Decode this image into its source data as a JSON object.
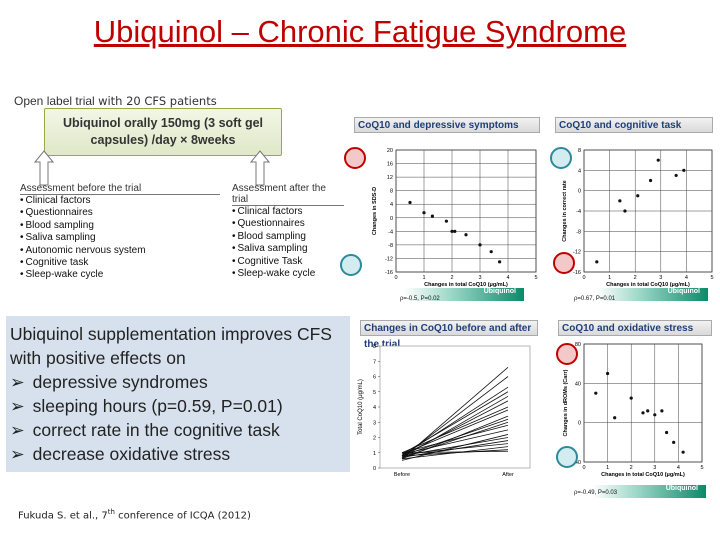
{
  "title": "Ubiquinol – Chronic Fatigue Syndrome",
  "trial": {
    "label": "Open label trial",
    "label_suffix": "with 20 CFS patients",
    "dose": "Ubiquinol orally 150mg (3 soft gel capsules) /day × 8weeks"
  },
  "assessment_before": {
    "heading": "Assessment before the trial",
    "items": [
      "Clinical factors",
      "Questionnaires",
      "Blood sampling",
      "Saliva sampling",
      "Autonomic nervous system",
      "Cognitive task",
      "Sleep-wake cycle"
    ]
  },
  "assessment_after": {
    "heading": "Assessment after the trial",
    "items": [
      "Clinical factors",
      "Questionnaires",
      "Blood sampling",
      "Saliva sampling",
      "Cognitive Task",
      "Sleep-wake cycle"
    ]
  },
  "panels": {
    "depressive": {
      "title": "CoQ10 and depressive symptoms",
      "stat": "ρ=-0.5, P=0.02",
      "strip": "Ubiquinol"
    },
    "cognitive": {
      "title": "CoQ10 and cognitive task",
      "stat": "ρ=0.67, P=0.01",
      "strip": "Ubiquinol"
    },
    "before_after": {
      "title": "Changes in CoQ10 before and after the trial",
      "xlabels": [
        "Before",
        "After"
      ]
    },
    "oxidative": {
      "title": "CoQ10 and oxidative stress",
      "stat": "ρ=-0.49, P=0.03",
      "strip": "Ubiquinol"
    }
  },
  "summary": {
    "intro": "Ubiquinol supplementation improves CFS with positive effects on",
    "bullets": [
      "depressive syndromes",
      "sleeping hours (p=0.59, P=0.01)",
      "correct rate in the cognitive task",
      "decrease oxidative stress"
    ]
  },
  "citation": {
    "text": "Fukuda S. et al., 7",
    "sup": "th",
    "rest": " conference of ICQA (2012)"
  },
  "chart_data": [
    {
      "type": "scatter",
      "title": "CoQ10 and depressive symptoms",
      "xlabel": "Changes in total CoQ10 (μg/mL)",
      "ylabel": "Changes in SDS-D",
      "xlim": [
        0,
        5
      ],
      "ylim": [
        -16,
        20
      ],
      "xticks": [
        0,
        1,
        2,
        3,
        4,
        5
      ],
      "yticks": [
        20,
        16,
        12,
        8,
        4,
        0,
        -4,
        -8,
        -12,
        -16
      ],
      "points": [
        [
          0.5,
          4.5
        ],
        [
          1.0,
          1.5
        ],
        [
          1.3,
          0.5
        ],
        [
          1.8,
          -1
        ],
        [
          2.0,
          -4
        ],
        [
          2.1,
          -4
        ],
        [
          2.5,
          -5
        ],
        [
          3.0,
          -8
        ],
        [
          3.4,
          -10
        ],
        [
          3.7,
          -13
        ]
      ]
    },
    {
      "type": "scatter",
      "title": "CoQ10 and cognitive task",
      "xlabel": "Changes in total CoQ10 (μg/mL)",
      "ylabel": "Changes in correct rate",
      "xlim": [
        0,
        5
      ],
      "ylim": [
        -16,
        8
      ],
      "xticks": [
        0,
        1,
        2,
        3,
        4,
        5
      ],
      "yticks": [
        8,
        4,
        0,
        -4,
        -8,
        -12,
        -16
      ],
      "points": [
        [
          0.5,
          -14
        ],
        [
          1.4,
          -2
        ],
        [
          1.6,
          -4
        ],
        [
          2.1,
          -1
        ],
        [
          2.6,
          2
        ],
        [
          2.9,
          6
        ],
        [
          3.6,
          3
        ],
        [
          3.9,
          4
        ]
      ]
    },
    {
      "type": "line",
      "title": "Changes in CoQ10 before and after the trial",
      "ylabel": "Total CoQ10 (μg/mL)",
      "categories": [
        "Before",
        "After"
      ],
      "ylim": [
        0,
        8
      ],
      "yticks": [
        8,
        7,
        6,
        5,
        4,
        3,
        2,
        1,
        0
      ],
      "series_values": [
        [
          0.6,
          6.6
        ],
        [
          0.7,
          6.0
        ],
        [
          0.8,
          5.3
        ],
        [
          0.9,
          5.0
        ],
        [
          0.7,
          4.7
        ],
        [
          0.8,
          4.4
        ],
        [
          1.0,
          4.0
        ],
        [
          0.9,
          3.8
        ],
        [
          0.6,
          3.4
        ],
        [
          0.8,
          3.2
        ],
        [
          0.7,
          3.0
        ],
        [
          1.0,
          2.8
        ],
        [
          0.9,
          2.5
        ],
        [
          0.5,
          2.2
        ],
        [
          0.8,
          2.0
        ],
        [
          0.7,
          1.8
        ],
        [
          0.9,
          1.6
        ],
        [
          0.6,
          1.4
        ],
        [
          0.8,
          1.2
        ],
        [
          1.0,
          1.1
        ]
      ]
    },
    {
      "type": "scatter",
      "title": "CoQ10 and oxidative stress",
      "xlabel": "Changes in total CoQ10 (μg/mL)",
      "ylabel": "Changes in dROMs (Carr)",
      "xlim": [
        0,
        5
      ],
      "ylim": [
        -40,
        80
      ],
      "xticks": [
        0,
        1,
        2,
        3,
        4,
        5
      ],
      "yticks": [
        80,
        40,
        0,
        -40
      ],
      "points": [
        [
          0.5,
          30
        ],
        [
          1.0,
          50
        ],
        [
          1.3,
          5
        ],
        [
          2.5,
          10
        ],
        [
          2.7,
          12
        ],
        [
          3.0,
          8
        ],
        [
          3.3,
          12
        ],
        [
          3.5,
          -10
        ],
        [
          3.8,
          -20
        ],
        [
          4.2,
          -30
        ],
        [
          2.0,
          25
        ]
      ]
    }
  ]
}
